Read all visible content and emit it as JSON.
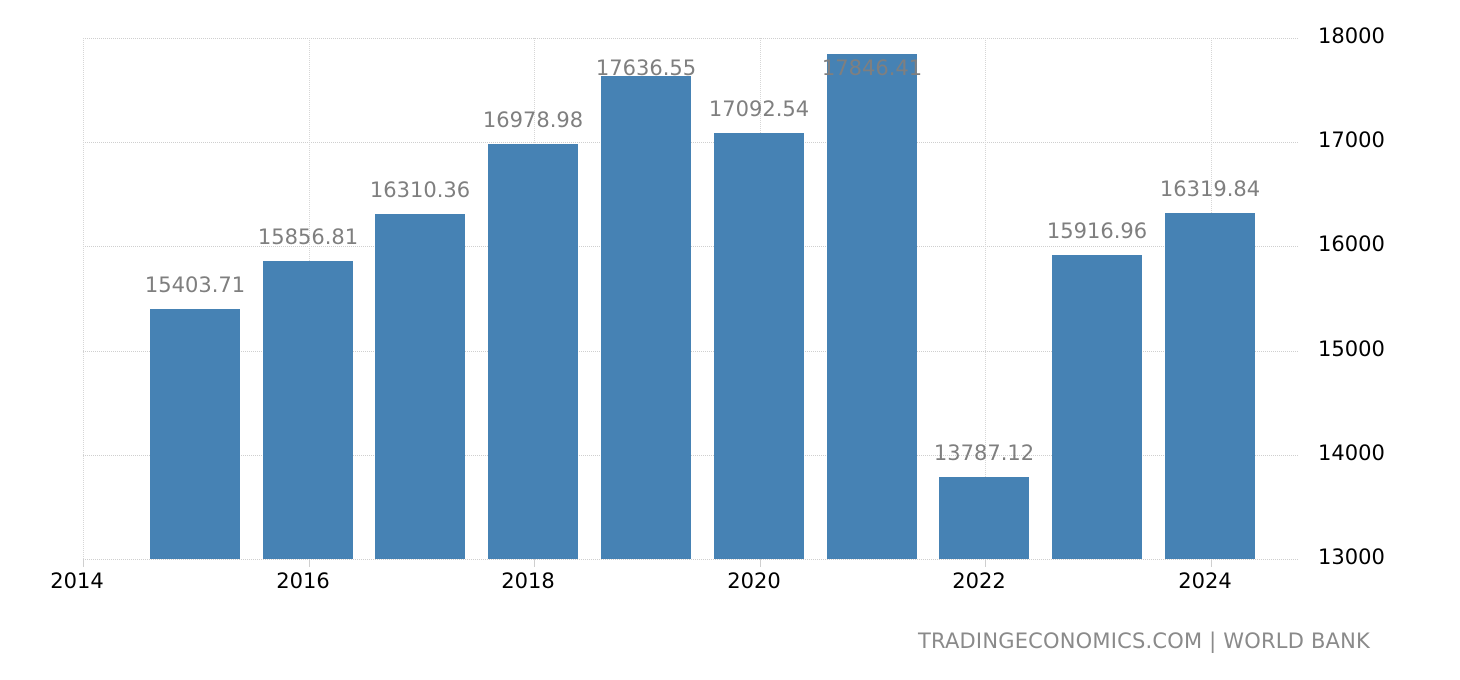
{
  "chart_data": {
    "type": "bar",
    "title": "",
    "xlabel": "",
    "ylabel": "",
    "categories": [
      "2015",
      "2016",
      "2017",
      "2018",
      "2019",
      "2020",
      "2021",
      "2022",
      "2023",
      "2024"
    ],
    "values": [
      15403.71,
      15856.81,
      16310.36,
      16978.98,
      17636.55,
      17092.54,
      17846.41,
      13787.12,
      15916.96,
      16319.84
    ],
    "value_labels": [
      "15403.71",
      "15856.81",
      "16310.36",
      "16978.98",
      "17636.55",
      "17092.54",
      "17846.41",
      "13787.12",
      "15916.96",
      "16319.84"
    ],
    "ylim": [
      13000,
      18000
    ],
    "y_ticks": [
      "18000",
      "17000",
      "16000",
      "15000",
      "14000",
      "13000"
    ],
    "x_ticks": [
      "2014",
      "2016",
      "2018",
      "2020",
      "2022",
      "2024"
    ],
    "y_axis_position": "right",
    "grid": true,
    "bar_color": "#4682b4",
    "legend": null
  },
  "source_text": "TRADINGECONOMICS.COM | WORLD BANK"
}
